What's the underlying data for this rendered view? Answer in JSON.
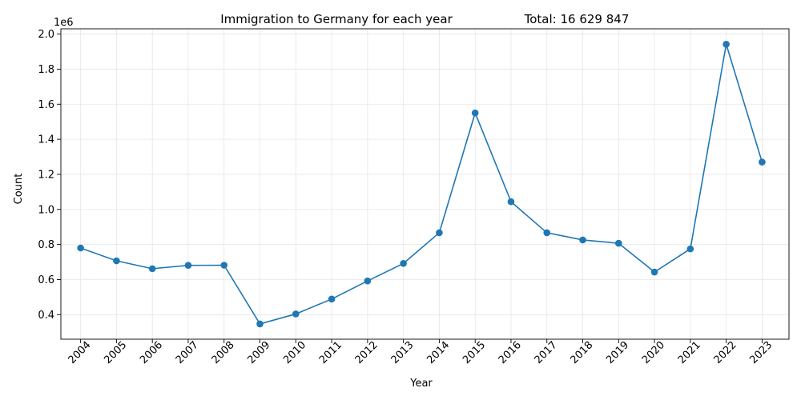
{
  "chart_data": {
    "type": "line",
    "title": "Immigration to Germany for each year",
    "total_label": "Total: 16 629 847",
    "xlabel": "Year",
    "ylabel": "Count",
    "y_offset_text": "1e6",
    "x": [
      2004,
      2005,
      2006,
      2007,
      2008,
      2009,
      2010,
      2011,
      2012,
      2013,
      2014,
      2015,
      2016,
      2017,
      2018,
      2019,
      2020,
      2021,
      2022,
      2023
    ],
    "x_tick_labels": [
      "2004",
      "2005",
      "2006",
      "2007",
      "2008",
      "2009",
      "2010",
      "2011",
      "2012",
      "2013",
      "2014",
      "2015",
      "2016",
      "2017",
      "2018",
      "2019",
      "2020",
      "2021",
      "2022",
      "2023"
    ],
    "series": [
      {
        "values": [
          780000,
          707000,
          662000,
          681000,
          682000,
          347000,
          404000,
          489000,
          592000,
          692000,
          867000,
          1550000,
          1044000,
          867000,
          826000,
          807000,
          643000,
          775000,
          1942000,
          1270000
        ],
        "color": "#1f77b4"
      }
    ],
    "y_ticks": [
      400000,
      600000,
      800000,
      1000000,
      1200000,
      1400000,
      1600000,
      1800000,
      2000000
    ],
    "y_tick_labels": [
      "0.4",
      "0.6",
      "0.8",
      "1.0",
      "1.2",
      "1.4",
      "1.6",
      "1.8",
      "2.0"
    ],
    "ylim": [
      260000,
      2030000
    ],
    "xlim": [
      2003.45,
      2023.75
    ],
    "grid": true,
    "marker": "circle"
  }
}
